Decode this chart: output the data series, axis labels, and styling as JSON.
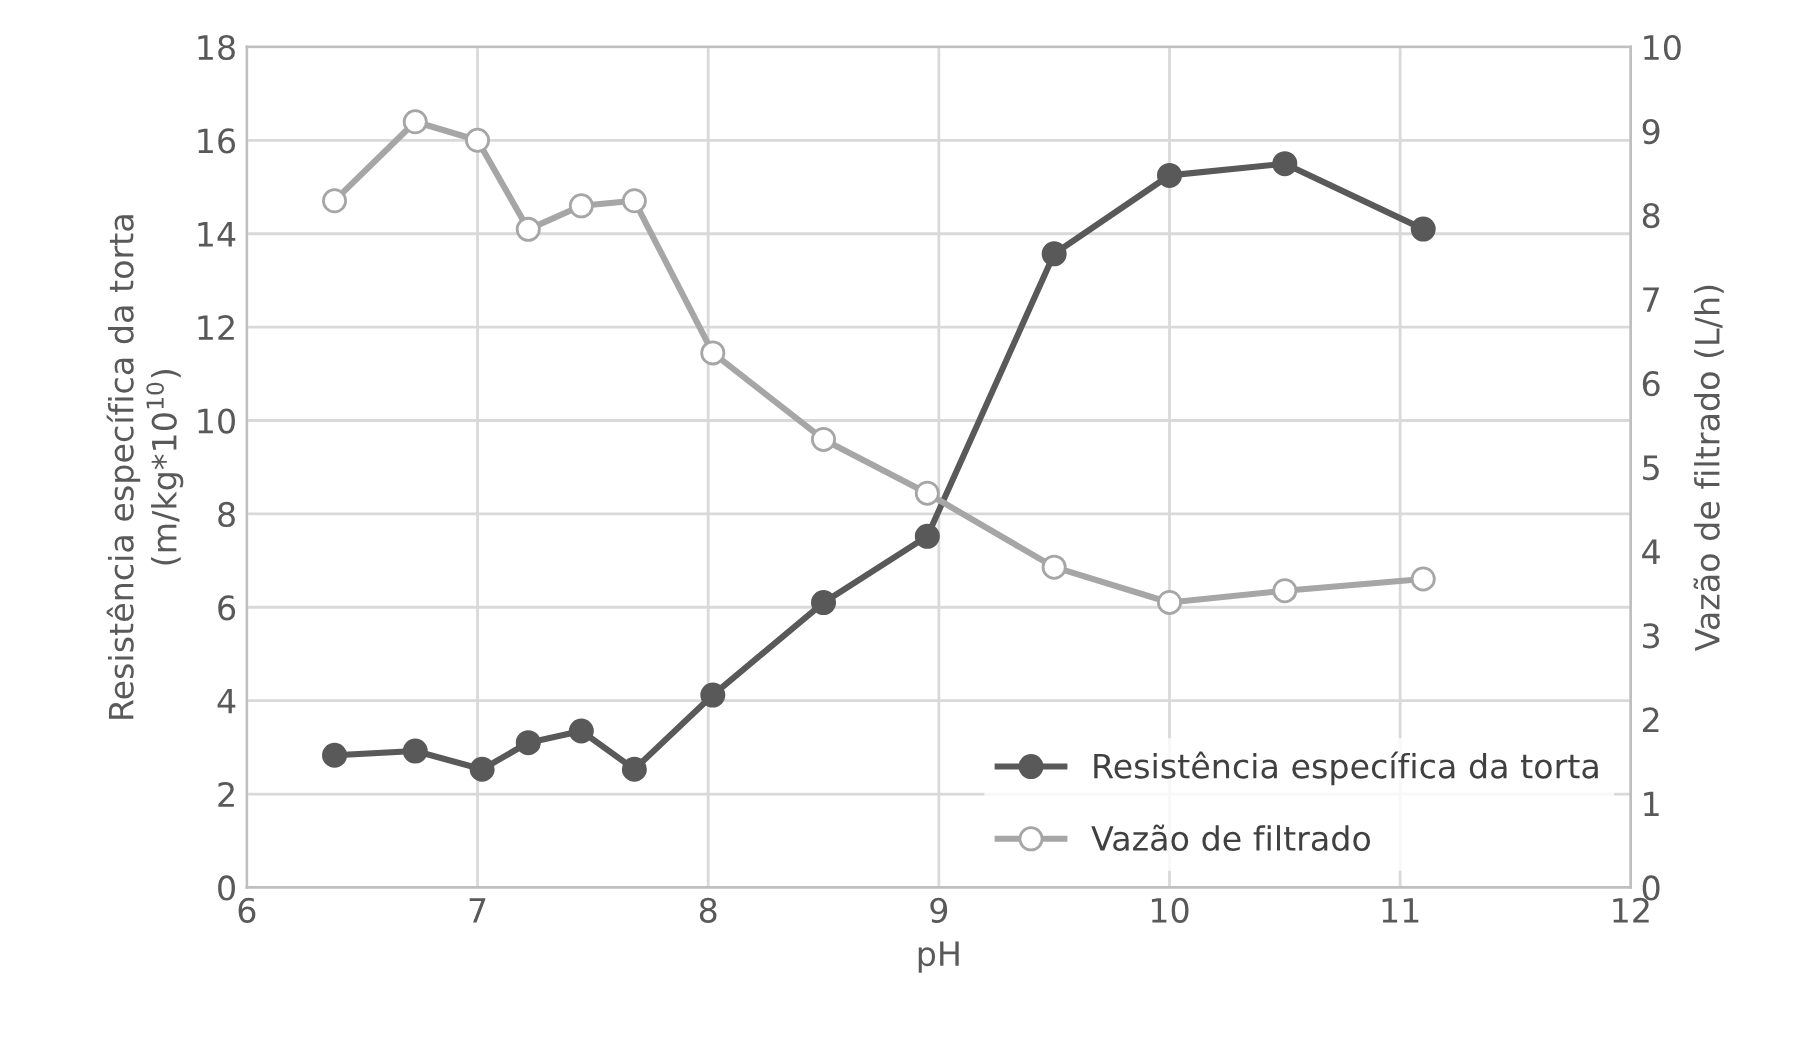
{
  "chart_data": {
    "type": "line",
    "xlabel": "pH",
    "ylabel": "Resistência específica da torta\n(m/kg*10$^{10}$)",
    "y2label": "Vazão de filtrado (L/h)",
    "xlim": [
      6,
      12
    ],
    "xticks": [
      6,
      7,
      8,
      9,
      10,
      11,
      12
    ],
    "ylim": [
      0,
      18
    ],
    "yticks": [
      0,
      2,
      4,
      6,
      8,
      10,
      12,
      14,
      16,
      18
    ],
    "y2lim": [
      0,
      10
    ],
    "y2ticks": [
      0,
      1,
      2,
      3,
      4,
      5,
      6,
      7,
      8,
      9,
      10
    ],
    "grid": true,
    "legend": "bottom right",
    "marker": "circle",
    "line_style": "solid",
    "series": [
      {
        "name": "Resistência específica da torta",
        "color": "#595959",
        "x": [
          6.38,
          6.73,
          7.02,
          7.22,
          7.45,
          7.68,
          8.02,
          8.5,
          8.95,
          9.5,
          10.0,
          10.5,
          11.1
        ],
        "values": [
          2.83,
          2.92,
          2.53,
          3.1,
          3.35,
          2.53,
          4.12,
          6.1,
          7.52,
          13.57,
          15.25,
          15.5,
          14.1
        ]
      },
      {
        "name": "Vazão de filtrado",
        "color": "#a6a6a6",
        "axis": "y2",
        "x": [
          6.38,
          6.73,
          7.0,
          7.22,
          7.45,
          7.68,
          8.02,
          8.5,
          8.95,
          9.5,
          10.0,
          10.5,
          11.1
        ],
        "values": [
          8.17,
          9.11,
          8.89,
          7.83,
          8.11,
          8.17,
          6.36,
          5.33,
          4.69,
          3.81,
          3.39,
          3.53,
          3.67
        ]
      }
    ]
  }
}
